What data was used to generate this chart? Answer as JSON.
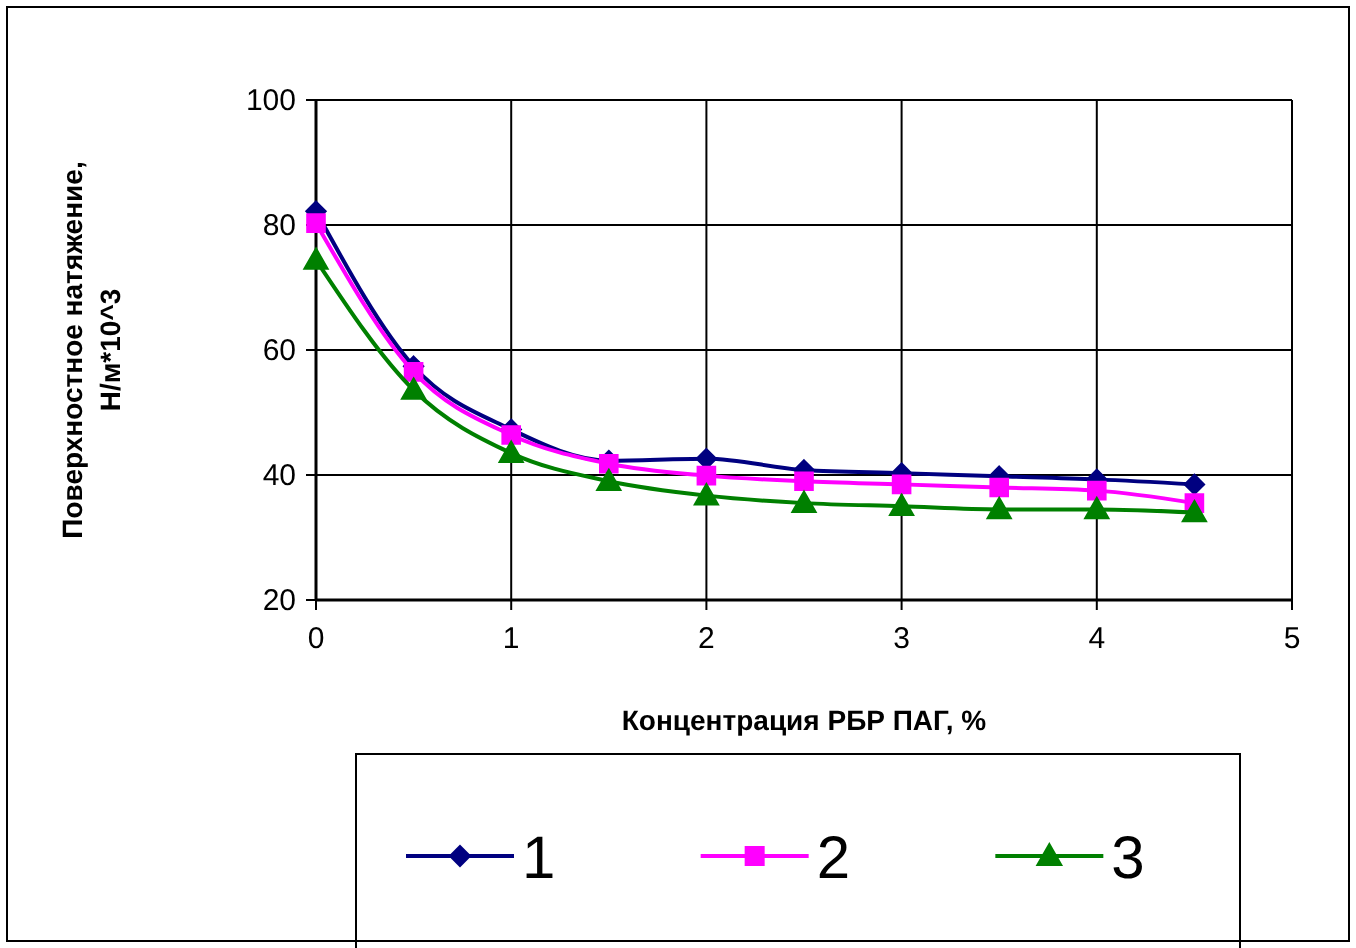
{
  "chart_data": {
    "type": "line",
    "xlabel": "Концентрация РБР ПАГ, %",
    "ylabel": "Поверхностное натяжение, Н/м*10^3",
    "x": [
      0,
      0.5,
      1,
      1.5,
      2,
      2.5,
      3,
      3.5,
      4,
      4.5
    ],
    "series": [
      {
        "name": "1",
        "color": "#000080",
        "marker": "diamond",
        "values": [
          82.2,
          57.4,
          47.3,
          42.3,
          42.6,
          40.8,
          40.3,
          39.8,
          39.3,
          38.5
        ]
      },
      {
        "name": "2",
        "color": "#ff00ff",
        "marker": "square",
        "values": [
          80.3,
          56.5,
          46.4,
          41.8,
          39.9,
          39,
          38.5,
          38,
          37.5,
          35.5
        ]
      },
      {
        "name": "3",
        "color": "#008000",
        "marker": "triangle",
        "values": [
          74.4,
          53.6,
          43.5,
          39,
          36.7,
          35.5,
          35,
          34.5,
          34.5,
          34
        ]
      }
    ],
    "xlim": [
      0,
      5
    ],
    "xticks": [
      0,
      1,
      2,
      3,
      4,
      5
    ],
    "ylim": [
      20,
      100
    ],
    "yticks": [
      20,
      40,
      60,
      80,
      100
    ],
    "grid": true,
    "legend": "bottom",
    "line_style": "solid"
  }
}
